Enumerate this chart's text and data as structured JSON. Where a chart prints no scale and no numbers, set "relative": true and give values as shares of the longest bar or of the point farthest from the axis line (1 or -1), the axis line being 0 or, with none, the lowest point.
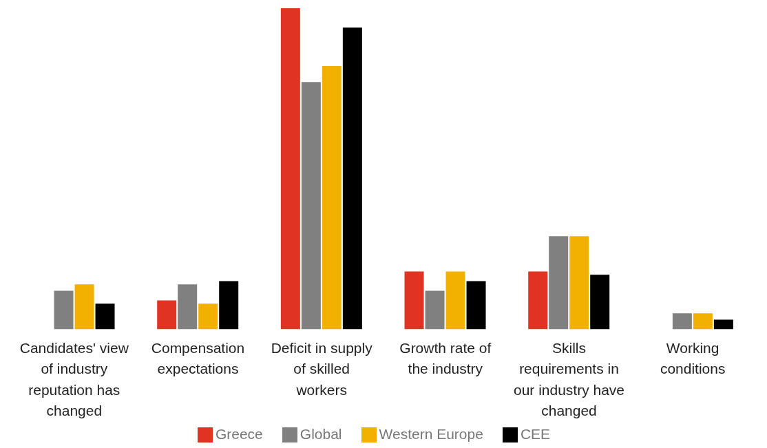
{
  "chart_data": {
    "type": "bar",
    "relative": true,
    "categories": [
      "Candidates' view of industry reputation has changed",
      "Compensation expectations",
      "Deficit in supply of skilled workers",
      "Growth rate of the industry",
      "Skills requirements in our industry have changed",
      "Working conditions"
    ],
    "series": [
      {
        "name": "Greece",
        "color": "#e03323",
        "values": [
          0,
          0.09,
          1,
          0.18,
          0.18,
          0
        ]
      },
      {
        "name": "Global",
        "color": "#808080",
        "values": [
          0.12,
          0.14,
          0.77,
          0.12,
          0.29,
          0.05
        ]
      },
      {
        "name": "Western Europe",
        "color": "#f2b100",
        "values": [
          0.14,
          0.08,
          0.82,
          0.18,
          0.29,
          0.05
        ]
      },
      {
        "name": "CEE",
        "color": "#000000",
        "values": [
          0.08,
          0.15,
          0.94,
          0.15,
          0.17,
          0.03
        ]
      }
    ],
    "legend": "bottom",
    "grid": false
  }
}
